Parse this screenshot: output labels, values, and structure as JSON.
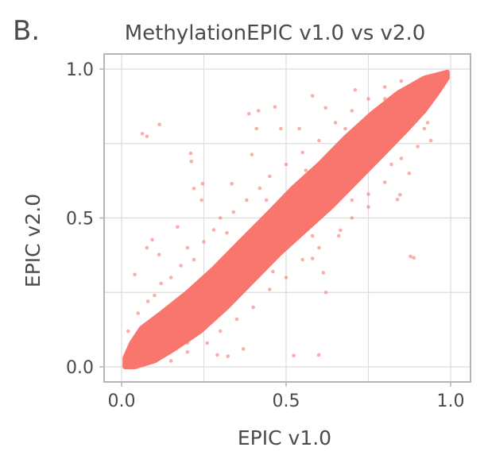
{
  "panel_label": "B.",
  "chart_data": {
    "type": "scatter",
    "title": "MethylationEPIC v1.0 vs v2.0",
    "xlabel": "EPIC v1.0",
    "ylabel": "EPIC v2.0",
    "xlim": [
      -0.05,
      1.06
    ],
    "ylim": [
      -0.05,
      1.05
    ],
    "xticks": [
      {
        "value": 0,
        "label": "0.0"
      },
      {
        "value": 0.5,
        "label": "0.5"
      },
      {
        "value": 1,
        "label": "1.0"
      }
    ],
    "yticks": [
      {
        "value": 0,
        "label": "0.0"
      },
      {
        "value": 0.5,
        "label": "0.5"
      },
      {
        "value": 1,
        "label": "1.0"
      }
    ],
    "minor_gridlines": [
      0.25,
      0.75
    ],
    "grid": true,
    "legend": "none",
    "point_color": "#F8766D",
    "dense_region_envelope": [
      [
        0.01,
        0.0
      ],
      [
        0.01,
        0.03
      ],
      [
        0.03,
        0.08
      ],
      [
        0.06,
        0.13
      ],
      [
        0.12,
        0.18
      ],
      [
        0.2,
        0.25
      ],
      [
        0.28,
        0.33
      ],
      [
        0.36,
        0.42
      ],
      [
        0.45,
        0.52
      ],
      [
        0.52,
        0.6
      ],
      [
        0.6,
        0.68
      ],
      [
        0.68,
        0.77
      ],
      [
        0.76,
        0.85
      ],
      [
        0.84,
        0.92
      ],
      [
        0.92,
        0.97
      ],
      [
        0.99,
        0.99
      ],
      [
        0.99,
        0.97
      ],
      [
        0.96,
        0.92
      ],
      [
        0.92,
        0.86
      ],
      [
        0.87,
        0.8
      ],
      [
        0.8,
        0.72
      ],
      [
        0.72,
        0.63
      ],
      [
        0.64,
        0.54
      ],
      [
        0.56,
        0.46
      ],
      [
        0.48,
        0.38
      ],
      [
        0.4,
        0.29
      ],
      [
        0.32,
        0.2
      ],
      [
        0.24,
        0.12
      ],
      [
        0.16,
        0.06
      ],
      [
        0.1,
        0.02
      ],
      [
        0.04,
        0.0
      ]
    ],
    "points": [
      [
        0.063,
        0.783
      ],
      [
        0.077,
        0.774
      ],
      [
        0.115,
        0.814
      ],
      [
        0.21,
        0.717
      ],
      [
        0.212,
        0.69
      ],
      [
        0.22,
        0.599
      ],
      [
        0.246,
        0.615
      ],
      [
        0.387,
        0.85
      ],
      [
        0.416,
        0.86
      ],
      [
        0.466,
        0.873
      ],
      [
        0.58,
        0.91
      ],
      [
        0.41,
        0.8
      ],
      [
        0.484,
        0.8
      ],
      [
        0.878,
        0.371
      ],
      [
        0.888,
        0.366
      ],
      [
        0.613,
        0.316
      ],
      [
        0.621,
        0.25
      ],
      [
        0.523,
        0.038
      ],
      [
        0.599,
        0.04
      ],
      [
        0.04,
        0.31
      ],
      [
        0.077,
        0.4
      ],
      [
        0.093,
        0.427
      ],
      [
        0.323,
        0.036
      ],
      [
        0.291,
        0.04
      ],
      [
        0.838,
        0.562
      ],
      [
        0.846,
        0.578
      ],
      [
        0.874,
        0.65
      ],
      [
        0.94,
        0.76
      ],
      [
        0.75,
        0.537
      ],
      [
        0.665,
        0.459
      ],
      [
        0.58,
        0.364
      ],
      [
        0.37,
        0.06
      ],
      [
        0.17,
        0.47
      ],
      [
        0.114,
        0.377
      ],
      [
        0.243,
        0.56
      ],
      [
        0.335,
        0.615
      ],
      [
        0.396,
        0.713
      ],
      [
        0.54,
        0.8
      ],
      [
        0.62,
        0.87
      ],
      [
        0.71,
        0.93
      ],
      [
        0.05,
        0.18
      ],
      [
        0.08,
        0.22
      ],
      [
        0.12,
        0.28
      ],
      [
        0.15,
        0.3
      ],
      [
        0.18,
        0.34
      ],
      [
        0.2,
        0.4
      ],
      [
        0.25,
        0.42
      ],
      [
        0.28,
        0.46
      ],
      [
        0.3,
        0.5
      ],
      [
        0.34,
        0.52
      ],
      [
        0.38,
        0.56
      ],
      [
        0.42,
        0.6
      ],
      [
        0.45,
        0.64
      ],
      [
        0.5,
        0.68
      ],
      [
        0.55,
        0.72
      ],
      [
        0.6,
        0.76
      ],
      [
        0.65,
        0.82
      ],
      [
        0.7,
        0.86
      ],
      [
        0.75,
        0.9
      ],
      [
        0.8,
        0.94
      ],
      [
        0.85,
        0.96
      ],
      [
        0.15,
        0.02
      ],
      [
        0.2,
        0.05
      ],
      [
        0.26,
        0.08
      ],
      [
        0.3,
        0.12
      ],
      [
        0.35,
        0.16
      ],
      [
        0.4,
        0.2
      ],
      [
        0.45,
        0.26
      ],
      [
        0.5,
        0.3
      ],
      [
        0.55,
        0.36
      ],
      [
        0.6,
        0.4
      ],
      [
        0.66,
        0.44
      ],
      [
        0.7,
        0.5
      ],
      [
        0.75,
        0.58
      ],
      [
        0.8,
        0.62
      ],
      [
        0.85,
        0.7
      ],
      [
        0.9,
        0.74
      ],
      [
        0.93,
        0.82
      ],
      [
        0.02,
        0.12
      ],
      [
        0.1,
        0.24
      ],
      [
        0.22,
        0.36
      ],
      [
        0.32,
        0.45
      ],
      [
        0.44,
        0.56
      ],
      [
        0.56,
        0.66
      ],
      [
        0.68,
        0.8
      ],
      [
        0.8,
        0.9
      ],
      [
        0.2,
        0.08
      ],
      [
        0.34,
        0.22
      ],
      [
        0.46,
        0.32
      ],
      [
        0.58,
        0.44
      ],
      [
        0.7,
        0.56
      ],
      [
        0.82,
        0.68
      ],
      [
        0.92,
        0.8
      ]
    ]
  }
}
